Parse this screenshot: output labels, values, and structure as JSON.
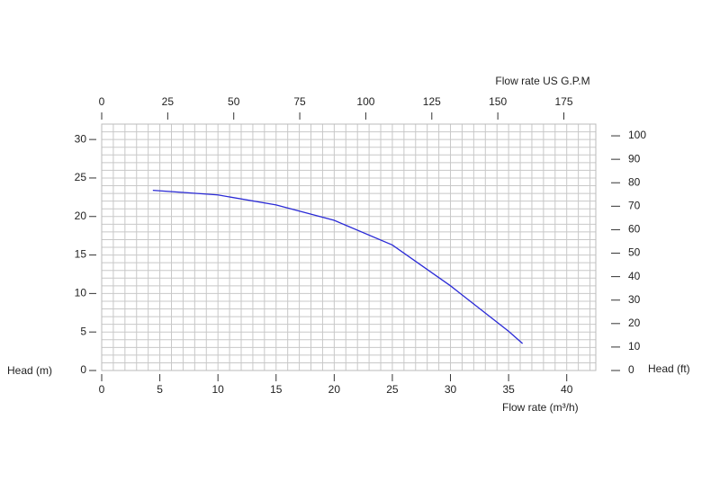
{
  "chart_data": {
    "type": "line",
    "x_label": "Flow rate  (m³/h)",
    "x2_label": "Flow rate US  G.P.M",
    "y_label": "Head (m)",
    "y2_label": "Head (ft)",
    "x": [
      4.4,
      10,
      15,
      20,
      25,
      30,
      35,
      36.2
    ],
    "series": [
      {
        "color": "#2a2ad6",
        "values": [
          23.4,
          22.8,
          21.5,
          19.5,
          16.3,
          11.0,
          5.1,
          3.5
        ]
      }
    ],
    "xlim": [
      0,
      42.5
    ],
    "xticks": [
      0,
      5,
      10,
      15,
      20,
      25,
      30,
      35,
      40
    ],
    "x2lim": [
      0,
      187.1
    ],
    "x2ticks": [
      0,
      25,
      50,
      75,
      100,
      125,
      150,
      175
    ],
    "ylim": [
      0,
      32
    ],
    "yticks": [
      0,
      5,
      10,
      15,
      20,
      25,
      30
    ],
    "y2lim": [
      0,
      105
    ],
    "y2ticks": [
      0,
      10,
      20,
      30,
      40,
      50,
      60,
      70,
      80,
      90,
      100
    ],
    "grid": true,
    "grid_minor_step": 1
  }
}
